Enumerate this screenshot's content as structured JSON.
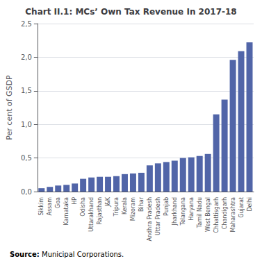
{
  "chart_data": {
    "type": "bar",
    "title": "Chart II.1: MCs’ Own Tax Revenue In 2017-18",
    "ylabel": "Per cent of GSDP",
    "annotations": [
      "Source:",
      "Municipal Corporations."
    ],
    "categories": [
      "Sikkim",
      "Assam",
      "Goa",
      "Karnataka",
      "HP",
      "Odisha",
      "Uttarakhand",
      "Rajasthan",
      "J&K",
      "Tripura",
      "Kerala",
      "Mizoram",
      "Bihar",
      "Andhra Pradesh",
      "Uttar Pradesh",
      "Punjab",
      "Jharkhand",
      "Telangana",
      "Haryana",
      "Tamil Nadu",
      "West Bengal",
      "Chhattisgarh",
      "Chandigarh",
      "Maharashtra",
      "Gujarat",
      "Delhi"
    ],
    "values": [
      0.05,
      0.07,
      0.09,
      0.1,
      0.12,
      0.19,
      0.21,
      0.22,
      0.22,
      0.23,
      0.26,
      0.27,
      0.28,
      0.39,
      0.42,
      0.44,
      0.46,
      0.5,
      0.51,
      0.53,
      0.56,
      1.15,
      1.37,
      1.96,
      2.09,
      2.22
    ],
    "color": "#5165a8",
    "ylim": [
      0,
      2.5
    ],
    "yticks": [
      {
        "value": 0.0,
        "label": "0,0"
      },
      {
        "value": 0.5,
        "label": "0,5"
      },
      {
        "value": 1.0,
        "label": "1,0"
      },
      {
        "value": 1.5,
        "label": "1,5"
      },
      {
        "value": 2.0,
        "label": "2,0"
      },
      {
        "value": 2.5,
        "label": "2,5"
      }
    ],
    "grid": true
  }
}
